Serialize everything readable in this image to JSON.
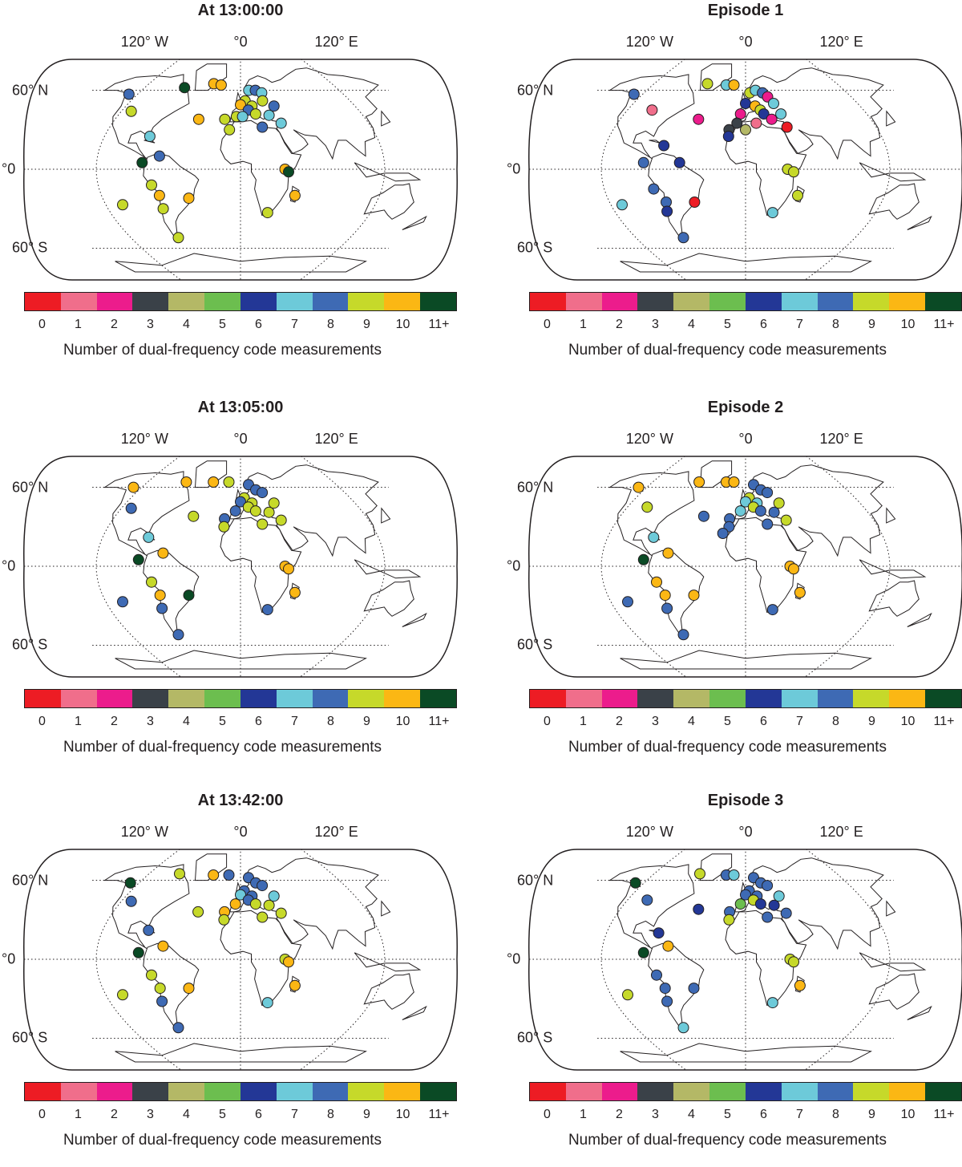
{
  "map_labels": {
    "lon": [
      "120° W",
      "°0",
      "120° E"
    ],
    "lat": [
      "60° N",
      "°0",
      "60° S"
    ]
  },
  "colorbar": {
    "ticks": [
      "0",
      "1",
      "2",
      "3",
      "4",
      "5",
      "6",
      "7",
      "8",
      "9",
      "10",
      "11+"
    ],
    "colors": [
      "#ed1c24",
      "#f06e8b",
      "#ec1c8c",
      "#3a4148",
      "#b4b866",
      "#6cbe4f",
      "#233796",
      "#6dcad9",
      "#3e6ab4",
      "#c6d92a",
      "#fbb714",
      "#0a4a25"
    ],
    "label": "Number of dual-frequency code measurements"
  },
  "panels": [
    {
      "title": "At 13:00:00",
      "stations": [
        {
          "lon": -130,
          "lat": 57,
          "v": 8
        },
        {
          "lon": -70,
          "lat": 62,
          "v": 11
        },
        {
          "lon": -110,
          "lat": 44,
          "v": 9
        },
        {
          "lon": -35,
          "lat": 65,
          "v": 10
        },
        {
          "lon": -25,
          "lat": 64,
          "v": 10
        },
        {
          "lon": 10,
          "lat": 60,
          "v": 7
        },
        {
          "lon": 18,
          "lat": 60,
          "v": 8
        },
        {
          "lon": 25,
          "lat": 58,
          "v": 7
        },
        {
          "lon": 5,
          "lat": 52,
          "v": 9
        },
        {
          "lon": 12,
          "lat": 48,
          "v": 9
        },
        {
          "lon": 0,
          "lat": 49,
          "v": 10
        },
        {
          "lon": -4,
          "lat": 40,
          "v": 9
        },
        {
          "lon": 8,
          "lat": 45,
          "v": 8
        },
        {
          "lon": 15,
          "lat": 42,
          "v": 9
        },
        {
          "lon": 28,
          "lat": 41,
          "v": 7
        },
        {
          "lon": 35,
          "lat": 48,
          "v": 8
        },
        {
          "lon": 38,
          "lat": 35,
          "v": 7
        },
        {
          "lon": -15,
          "lat": 38,
          "v": 9
        },
        {
          "lon": -40,
          "lat": 38,
          "v": 10
        },
        {
          "lon": -10,
          "lat": 30,
          "v": 9
        },
        {
          "lon": 20,
          "lat": 32,
          "v": 8
        },
        {
          "lon": 2,
          "lat": 40,
          "v": 7
        },
        {
          "lon": 24,
          "lat": 52,
          "v": 9
        },
        {
          "lon": -80,
          "lat": 25,
          "v": 7
        },
        {
          "lon": -68,
          "lat": 10,
          "v": 8
        },
        {
          "lon": -82,
          "lat": 5,
          "v": 11
        },
        {
          "lon": 37,
          "lat": 0,
          "v": 10
        },
        {
          "lon": 40,
          "lat": -2,
          "v": 11
        },
        {
          "lon": 47,
          "lat": -20,
          "v": 10
        },
        {
          "lon": -105,
          "lat": -27,
          "v": 9
        },
        {
          "lon": -75,
          "lat": -12,
          "v": 9
        },
        {
          "lon": -70,
          "lat": -20,
          "v": 10
        },
        {
          "lon": -45,
          "lat": -22,
          "v": 10
        },
        {
          "lon": -70,
          "lat": -30,
          "v": 9
        },
        {
          "lon": 25,
          "lat": -33,
          "v": 9
        },
        {
          "lon": -68,
          "lat": -52,
          "v": 9
        }
      ]
    },
    {
      "title": "Episode 1",
      "stations": [
        {
          "lon": -130,
          "lat": 57,
          "v": 8
        },
        {
          "lon": -50,
          "lat": 65,
          "v": 9
        },
        {
          "lon": -25,
          "lat": 64,
          "v": 7
        },
        {
          "lon": -15,
          "lat": 64,
          "v": 10
        },
        {
          "lon": -95,
          "lat": 45,
          "v": 1
        },
        {
          "lon": 5,
          "lat": 58,
          "v": 9
        },
        {
          "lon": 12,
          "lat": 60,
          "v": 7
        },
        {
          "lon": 20,
          "lat": 58,
          "v": 8
        },
        {
          "lon": 25,
          "lat": 55,
          "v": 2
        },
        {
          "lon": 30,
          "lat": 50,
          "v": 7
        },
        {
          "lon": 0,
          "lat": 50,
          "v": 6
        },
        {
          "lon": 10,
          "lat": 48,
          "v": 10
        },
        {
          "lon": 15,
          "lat": 45,
          "v": 9
        },
        {
          "lon": -5,
          "lat": 42,
          "v": 2
        },
        {
          "lon": 18,
          "lat": 42,
          "v": 6
        },
        {
          "lon": 35,
          "lat": 42,
          "v": 7
        },
        {
          "lon": 25,
          "lat": 38,
          "v": 2
        },
        {
          "lon": -8,
          "lat": 35,
          "v": 3
        },
        {
          "lon": -45,
          "lat": 38,
          "v": 2
        },
        {
          "lon": 10,
          "lat": 35,
          "v": 1
        },
        {
          "lon": 38,
          "lat": 32,
          "v": 0
        },
        {
          "lon": -15,
          "lat": 30,
          "v": 3
        },
        {
          "lon": 0,
          "lat": 30,
          "v": 4
        },
        {
          "lon": -15,
          "lat": 25,
          "v": 6
        },
        {
          "lon": -70,
          "lat": 18,
          "v": 6
        },
        {
          "lon": -85,
          "lat": 5,
          "v": 8
        },
        {
          "lon": -55,
          "lat": 5,
          "v": 6
        },
        {
          "lon": 35,
          "lat": 0,
          "v": 9
        },
        {
          "lon": 40,
          "lat": -2,
          "v": 9
        },
        {
          "lon": 45,
          "lat": -20,
          "v": 9
        },
        {
          "lon": -110,
          "lat": -27,
          "v": 7
        },
        {
          "lon": -78,
          "lat": -15,
          "v": 8
        },
        {
          "lon": -70,
          "lat": -25,
          "v": 8
        },
        {
          "lon": -45,
          "lat": -25,
          "v": 0
        },
        {
          "lon": -72,
          "lat": -32,
          "v": 6
        },
        {
          "lon": 25,
          "lat": -33,
          "v": 7
        },
        {
          "lon": -68,
          "lat": -52,
          "v": 8
        }
      ]
    },
    {
      "title": "At 13:05:00",
      "stations": [
        {
          "lon": -130,
          "lat": 60,
          "v": 10
        },
        {
          "lon": -70,
          "lat": 64,
          "v": 10
        },
        {
          "lon": -110,
          "lat": 44,
          "v": 8
        },
        {
          "lon": -35,
          "lat": 64,
          "v": 10
        },
        {
          "lon": -15,
          "lat": 64,
          "v": 9
        },
        {
          "lon": 10,
          "lat": 62,
          "v": 8
        },
        {
          "lon": 18,
          "lat": 58,
          "v": 8
        },
        {
          "lon": 25,
          "lat": 56,
          "v": 8
        },
        {
          "lon": 4,
          "lat": 52,
          "v": 9
        },
        {
          "lon": 12,
          "lat": 48,
          "v": 9
        },
        {
          "lon": 0,
          "lat": 49,
          "v": 8
        },
        {
          "lon": -5,
          "lat": 42,
          "v": 8
        },
        {
          "lon": 8,
          "lat": 45,
          "v": 9
        },
        {
          "lon": 15,
          "lat": 42,
          "v": 9
        },
        {
          "lon": 28,
          "lat": 41,
          "v": 9
        },
        {
          "lon": 35,
          "lat": 48,
          "v": 9
        },
        {
          "lon": 38,
          "lat": 35,
          "v": 9
        },
        {
          "lon": -15,
          "lat": 36,
          "v": 8
        },
        {
          "lon": -45,
          "lat": 38,
          "v": 9
        },
        {
          "lon": -15,
          "lat": 30,
          "v": 9
        },
        {
          "lon": 20,
          "lat": 32,
          "v": 9
        },
        {
          "lon": -80,
          "lat": 22,
          "v": 7
        },
        {
          "lon": -65,
          "lat": 10,
          "v": 10
        },
        {
          "lon": -85,
          "lat": 5,
          "v": 11
        },
        {
          "lon": 37,
          "lat": 0,
          "v": 10
        },
        {
          "lon": 40,
          "lat": -2,
          "v": 10
        },
        {
          "lon": 47,
          "lat": -20,
          "v": 10
        },
        {
          "lon": -105,
          "lat": -27,
          "v": 8
        },
        {
          "lon": -75,
          "lat": -12,
          "v": 9
        },
        {
          "lon": -70,
          "lat": -22,
          "v": 10
        },
        {
          "lon": -45,
          "lat": -22,
          "v": 11
        },
        {
          "lon": -72,
          "lat": -32,
          "v": 8
        },
        {
          "lon": 25,
          "lat": -33,
          "v": 8
        },
        {
          "lon": -68,
          "lat": -52,
          "v": 8
        }
      ]
    },
    {
      "title": "Episode 2",
      "stations": [
        {
          "lon": -130,
          "lat": 60,
          "v": 10
        },
        {
          "lon": -60,
          "lat": 64,
          "v": 10
        },
        {
          "lon": -100,
          "lat": 45,
          "v": 9
        },
        {
          "lon": -25,
          "lat": 64,
          "v": 10
        },
        {
          "lon": -15,
          "lat": 64,
          "v": 10
        },
        {
          "lon": 10,
          "lat": 62,
          "v": 8
        },
        {
          "lon": 18,
          "lat": 58,
          "v": 8
        },
        {
          "lon": 25,
          "lat": 56,
          "v": 8
        },
        {
          "lon": 4,
          "lat": 52,
          "v": 9
        },
        {
          "lon": 12,
          "lat": 48,
          "v": 7
        },
        {
          "lon": 0,
          "lat": 49,
          "v": 7
        },
        {
          "lon": -5,
          "lat": 42,
          "v": 7
        },
        {
          "lon": 8,
          "lat": 45,
          "v": 9
        },
        {
          "lon": 15,
          "lat": 42,
          "v": 8
        },
        {
          "lon": 28,
          "lat": 41,
          "v": 8
        },
        {
          "lon": 35,
          "lat": 48,
          "v": 9
        },
        {
          "lon": 38,
          "lat": 35,
          "v": 9
        },
        {
          "lon": -15,
          "lat": 36,
          "v": 8
        },
        {
          "lon": -40,
          "lat": 38,
          "v": 8
        },
        {
          "lon": -15,
          "lat": 30,
          "v": 8
        },
        {
          "lon": 20,
          "lat": 32,
          "v": 8
        },
        {
          "lon": -20,
          "lat": 25,
          "v": 8
        },
        {
          "lon": -80,
          "lat": 22,
          "v": 7
        },
        {
          "lon": -65,
          "lat": 10,
          "v": 10
        },
        {
          "lon": -85,
          "lat": 5,
          "v": 11
        },
        {
          "lon": 37,
          "lat": 0,
          "v": 10
        },
        {
          "lon": 40,
          "lat": -2,
          "v": 10
        },
        {
          "lon": 47,
          "lat": -20,
          "v": 10
        },
        {
          "lon": -105,
          "lat": -27,
          "v": 8
        },
        {
          "lon": -75,
          "lat": -12,
          "v": 10
        },
        {
          "lon": -70,
          "lat": -22,
          "v": 10
        },
        {
          "lon": -45,
          "lat": -22,
          "v": 10
        },
        {
          "lon": -72,
          "lat": -32,
          "v": 8
        },
        {
          "lon": 25,
          "lat": -33,
          "v": 8
        },
        {
          "lon": -68,
          "lat": -52,
          "v": 8
        }
      ]
    },
    {
      "title": "At 13:42:00",
      "stations": [
        {
          "lon": -130,
          "lat": 58,
          "v": 11
        },
        {
          "lon": -80,
          "lat": 65,
          "v": 9
        },
        {
          "lon": -110,
          "lat": 44,
          "v": 8
        },
        {
          "lon": -35,
          "lat": 64,
          "v": 10
        },
        {
          "lon": -15,
          "lat": 64,
          "v": 8
        },
        {
          "lon": 10,
          "lat": 62,
          "v": 8
        },
        {
          "lon": 18,
          "lat": 58,
          "v": 8
        },
        {
          "lon": 25,
          "lat": 56,
          "v": 8
        },
        {
          "lon": 4,
          "lat": 52,
          "v": 8
        },
        {
          "lon": 12,
          "lat": 48,
          "v": 8
        },
        {
          "lon": 0,
          "lat": 49,
          "v": 7
        },
        {
          "lon": -5,
          "lat": 42,
          "v": 10
        },
        {
          "lon": 8,
          "lat": 45,
          "v": 8
        },
        {
          "lon": 15,
          "lat": 42,
          "v": 9
        },
        {
          "lon": 28,
          "lat": 41,
          "v": 9
        },
        {
          "lon": 35,
          "lat": 48,
          "v": 7
        },
        {
          "lon": 38,
          "lat": 35,
          "v": 9
        },
        {
          "lon": -15,
          "lat": 36,
          "v": 10
        },
        {
          "lon": -40,
          "lat": 36,
          "v": 9
        },
        {
          "lon": -15,
          "lat": 30,
          "v": 9
        },
        {
          "lon": 20,
          "lat": 32,
          "v": 9
        },
        {
          "lon": -80,
          "lat": 22,
          "v": 8
        },
        {
          "lon": -65,
          "lat": 10,
          "v": 10
        },
        {
          "lon": -85,
          "lat": 5,
          "v": 11
        },
        {
          "lon": 37,
          "lat": 0,
          "v": 9
        },
        {
          "lon": 40,
          "lat": -2,
          "v": 10
        },
        {
          "lon": 47,
          "lat": -20,
          "v": 10
        },
        {
          "lon": -105,
          "lat": -27,
          "v": 9
        },
        {
          "lon": -75,
          "lat": -12,
          "v": 9
        },
        {
          "lon": -70,
          "lat": -22,
          "v": 9
        },
        {
          "lon": -45,
          "lat": -22,
          "v": 10
        },
        {
          "lon": -72,
          "lat": -32,
          "v": 8
        },
        {
          "lon": 25,
          "lat": -33,
          "v": 7
        },
        {
          "lon": -68,
          "lat": -52,
          "v": 8
        }
      ]
    },
    {
      "title": "Episode 3",
      "stations": [
        {
          "lon": -130,
          "lat": 58,
          "v": 11
        },
        {
          "lon": -60,
          "lat": 65,
          "v": 9
        },
        {
          "lon": -100,
          "lat": 45,
          "v": 8
        },
        {
          "lon": -25,
          "lat": 64,
          "v": 8
        },
        {
          "lon": -15,
          "lat": 64,
          "v": 7
        },
        {
          "lon": 10,
          "lat": 62,
          "v": 8
        },
        {
          "lon": 18,
          "lat": 58,
          "v": 8
        },
        {
          "lon": 25,
          "lat": 56,
          "v": 8
        },
        {
          "lon": 4,
          "lat": 52,
          "v": 8
        },
        {
          "lon": 12,
          "lat": 48,
          "v": 8
        },
        {
          "lon": 0,
          "lat": 49,
          "v": 8
        },
        {
          "lon": -5,
          "lat": 42,
          "v": 5
        },
        {
          "lon": 8,
          "lat": 45,
          "v": 9
        },
        {
          "lon": 15,
          "lat": 42,
          "v": 6
        },
        {
          "lon": 28,
          "lat": 41,
          "v": 6
        },
        {
          "lon": 35,
          "lat": 48,
          "v": 7
        },
        {
          "lon": 38,
          "lat": 35,
          "v": 8
        },
        {
          "lon": -15,
          "lat": 36,
          "v": 8
        },
        {
          "lon": -45,
          "lat": 38,
          "v": 6
        },
        {
          "lon": -15,
          "lat": 30,
          "v": 9
        },
        {
          "lon": 20,
          "lat": 32,
          "v": 8
        },
        {
          "lon": -75,
          "lat": 20,
          "v": 6
        },
        {
          "lon": -65,
          "lat": 10,
          "v": 10
        },
        {
          "lon": -85,
          "lat": 5,
          "v": 11
        },
        {
          "lon": 37,
          "lat": 0,
          "v": 9
        },
        {
          "lon": 40,
          "lat": -2,
          "v": 9
        },
        {
          "lon": 47,
          "lat": -20,
          "v": 10
        },
        {
          "lon": -105,
          "lat": -27,
          "v": 9
        },
        {
          "lon": -75,
          "lat": -12,
          "v": 8
        },
        {
          "lon": -70,
          "lat": -22,
          "v": 8
        },
        {
          "lon": -45,
          "lat": -22,
          "v": 8
        },
        {
          "lon": -72,
          "lat": -32,
          "v": 8
        },
        {
          "lon": 25,
          "lat": -33,
          "v": 7
        },
        {
          "lon": -68,
          "lat": -52,
          "v": 7
        }
      ]
    }
  ]
}
